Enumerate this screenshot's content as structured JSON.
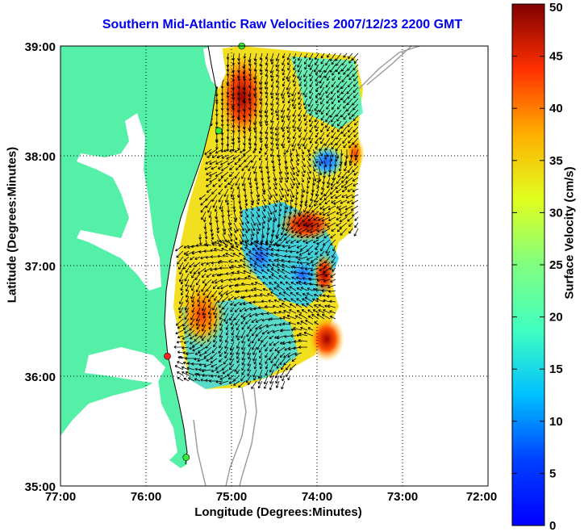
{
  "title": "Southern Mid-Atlantic Raw Velocities 2007/12/23 2200 GMT",
  "xlabel": "Longitude (Degrees:Minutes)",
  "ylabel": "Latitude (Degrees:Minutes)",
  "colorbar": {
    "label": "Surface Velocity (cm/s)",
    "ticks": [
      "0",
      "5",
      "10",
      "15",
      "20",
      "25",
      "30",
      "35",
      "40",
      "45",
      "50"
    ],
    "range": [
      0,
      50
    ]
  },
  "axes": {
    "lon_ticks": [
      "77:00",
      "76:00",
      "75:00",
      "74:00",
      "73:00",
      "72:00"
    ],
    "lat_ticks": [
      "39:00",
      "38:00",
      "37:00",
      "36:00",
      "35:00"
    ],
    "lon_range": [
      -77,
      -72
    ],
    "lat_range": [
      35,
      39
    ]
  },
  "colors": {
    "land": "#55f0a8",
    "title": "#0000ee",
    "arrows": "#000000",
    "bathymetry": "#9a9a9a",
    "station_red": "#ff2020",
    "station_green": "#33ee33"
  },
  "stations": [
    {
      "color": "red",
      "lon": -75.75,
      "lat": 36.18
    },
    {
      "color": "green",
      "lon": -75.53,
      "lat": 35.26
    },
    {
      "color": "green",
      "lon": -75.15,
      "lat": 38.23
    },
    {
      "color": "green",
      "lon": -74.88,
      "lat": 39.0
    }
  ]
}
